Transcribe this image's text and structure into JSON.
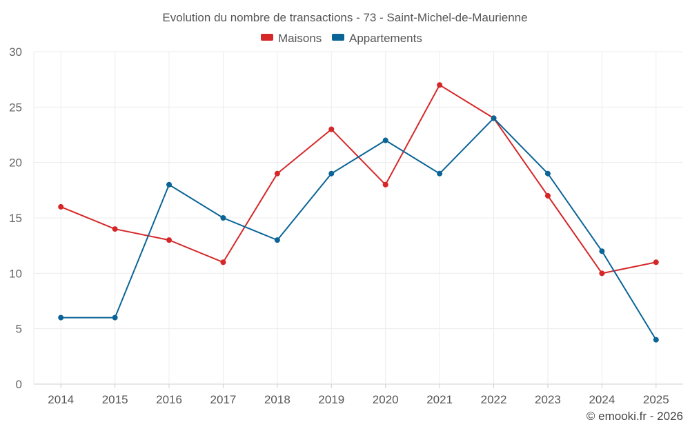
{
  "chart_data": {
    "type": "line",
    "title": "Evolution du nombre de transactions - 73 - Saint-Michel-de-Maurienne",
    "categories": [
      "2014",
      "2015",
      "2016",
      "2017",
      "2018",
      "2019",
      "2020",
      "2021",
      "2022",
      "2023",
      "2024",
      "2025"
    ],
    "series": [
      {
        "name": "Maisons",
        "color": "#d62728",
        "values": [
          16,
          14,
          13,
          11,
          19,
          23,
          18,
          27,
          24,
          17,
          10,
          11
        ]
      },
      {
        "name": "Appartements",
        "color": "#0a6496",
        "values": [
          6,
          6,
          18,
          15,
          13,
          19,
          22,
          19,
          24,
          19,
          12,
          4
        ]
      }
    ],
    "ylim": [
      0,
      30
    ],
    "yticks": [
      0,
      5,
      10,
      15,
      20,
      25,
      30
    ],
    "xlabel": "",
    "ylabel": "",
    "grid": true,
    "legend": "top-center"
  },
  "credit": "© emooki.fr - 2026"
}
